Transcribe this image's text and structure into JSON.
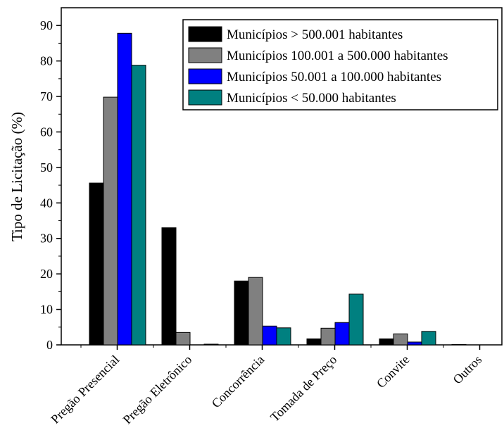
{
  "chart_data": {
    "type": "bar",
    "title": "",
    "xlabel": "",
    "ylabel": "Tipo de Licitação (%)",
    "ylim": [
      0,
      95
    ],
    "yticks": [
      0,
      10,
      20,
      30,
      40,
      50,
      60,
      70,
      80,
      90
    ],
    "grid": false,
    "legend_position": "top-right",
    "categories": [
      "Pregão Presencial",
      "Pregão Eletrônico",
      "Concorrência",
      "Tomada de Preço",
      "Convite",
      "Outros"
    ],
    "series": [
      {
        "name": "Municípios > 500.001 habitantes",
        "color": "#000000",
        "values": [
          45.6,
          33.0,
          18.0,
          1.7,
          1.7,
          0.1
        ]
      },
      {
        "name": "Municípios 100.001 a 500.000 habitantes",
        "color": "#808080",
        "values": [
          69.8,
          3.5,
          19.0,
          4.7,
          3.1,
          0.0
        ]
      },
      {
        "name": "Municípios 50.001 a 100.000 habitantes",
        "color": "#0000ff",
        "values": [
          87.8,
          0.0,
          5.3,
          6.3,
          0.8,
          0.0
        ]
      },
      {
        "name": "Municípios < 50.000 habitantes",
        "color": "#008080",
        "values": [
          78.8,
          0.2,
          4.8,
          14.3,
          3.8,
          0.0
        ]
      }
    ]
  }
}
